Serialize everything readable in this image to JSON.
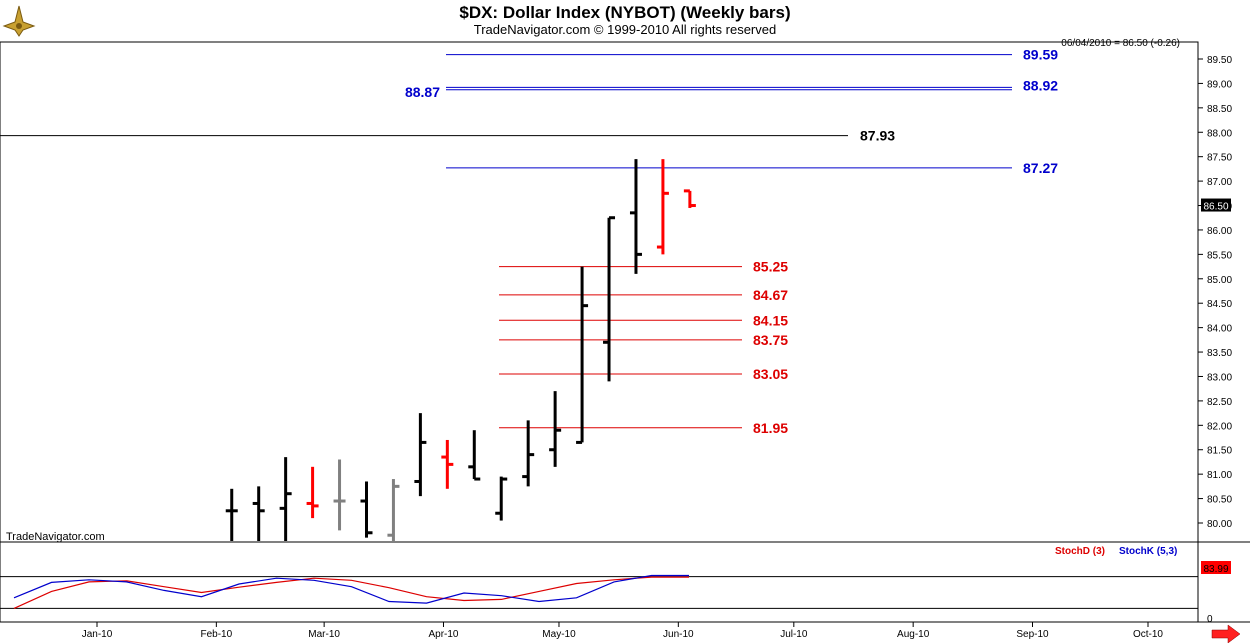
{
  "header": {
    "title": "$DX:  Dollar Index (NYBOT)  (Weekly bars)",
    "subtitle": "TradeNavigator.com © 1999-2010 All rights reserved",
    "quote_readout": "06/04/2010 = 86.50 (-0.26)",
    "watermark": "TradeNavigator.com"
  },
  "colors": {
    "up_bar": "#000000",
    "down_bar": "#ff0000",
    "neutral_bar": "#808080",
    "blue_level": "#0000cc",
    "red_level": "#dd0000",
    "stoch_d": "#dd0000",
    "stoch_k": "#0000cc"
  },
  "chart_data": [
    {
      "type": "ohlc",
      "title": "$DX:  Dollar Index (NYBOT)  (Weekly bars)",
      "x_tick_labels": [
        "Jan-10",
        "Feb-10",
        "Mar-10",
        "Apr-10",
        "May-10",
        "Jun-10",
        "Jul-10",
        "Aug-10",
        "Sep-10",
        "Oct-10"
      ],
      "y_tick_labels": [
        "80.00",
        "80.50",
        "81.00",
        "81.50",
        "82.00",
        "82.50",
        "83.00",
        "83.50",
        "84.00",
        "84.50",
        "85.00",
        "85.50",
        "86.00",
        "86.50",
        "87.00",
        "87.50",
        "88.00",
        "88.50",
        "89.00",
        "89.50"
      ],
      "ylim": [
        79.6,
        89.95
      ],
      "last_price": "86.50",
      "bars": [
        {
          "date": "2010-02-05",
          "open": 80.25,
          "high": 80.7,
          "low": 79.6,
          "close": 80.25,
          "color": "black"
        },
        {
          "date": "2010-02-12",
          "open": 80.4,
          "high": 80.75,
          "low": 79.6,
          "close": 80.25,
          "color": "black"
        },
        {
          "date": "2010-02-19",
          "open": 80.3,
          "high": 81.35,
          "low": 79.6,
          "close": 80.6,
          "color": "black"
        },
        {
          "date": "2010-02-26",
          "open": 80.4,
          "high": 81.15,
          "low": 80.1,
          "close": 80.35,
          "color": "red"
        },
        {
          "date": "2010-03-05",
          "open": 80.45,
          "high": 81.3,
          "low": 79.85,
          "close": 80.45,
          "color": "gray"
        },
        {
          "date": "2010-03-12",
          "open": 80.45,
          "high": 80.85,
          "low": 79.7,
          "close": 79.8,
          "color": "black"
        },
        {
          "date": "2010-03-19",
          "open": 79.75,
          "high": 80.9,
          "low": 79.6,
          "close": 80.75,
          "color": "gray"
        },
        {
          "date": "2010-03-26",
          "open": 80.85,
          "high": 82.25,
          "low": 80.55,
          "close": 81.65,
          "color": "black"
        },
        {
          "date": "2010-04-02",
          "open": 81.35,
          "high": 81.7,
          "low": 80.7,
          "close": 81.2,
          "color": "red"
        },
        {
          "date": "2010-04-09",
          "open": 81.15,
          "high": 81.9,
          "low": 80.9,
          "close": 80.9,
          "color": "black"
        },
        {
          "date": "2010-04-16",
          "open": 80.2,
          "high": 80.95,
          "low": 80.05,
          "close": 80.9,
          "color": "black"
        },
        {
          "date": "2010-04-23",
          "open": 80.95,
          "high": 82.1,
          "low": 80.75,
          "close": 81.4,
          "color": "black"
        },
        {
          "date": "2010-04-30",
          "open": 81.5,
          "high": 82.7,
          "low": 81.15,
          "close": 81.9,
          "color": "black"
        },
        {
          "date": "2010-05-07",
          "open": 81.65,
          "high": 85.25,
          "low": 81.65,
          "close": 84.45,
          "color": "black"
        },
        {
          "date": "2010-05-14",
          "open": 83.7,
          "high": 86.25,
          "low": 82.9,
          "close": 86.25,
          "color": "black"
        },
        {
          "date": "2010-05-21",
          "open": 86.35,
          "high": 87.45,
          "low": 85.1,
          "close": 85.5,
          "color": "black"
        },
        {
          "date": "2010-05-28",
          "open": 85.65,
          "high": 87.45,
          "low": 85.5,
          "close": 86.75,
          "color": "red"
        },
        {
          "date": "2010-06-04",
          "open": 86.8,
          "high": 86.8,
          "low": 86.45,
          "close": 86.5,
          "color": "red"
        }
      ],
      "levels": [
        {
          "value": "89.59",
          "color": "blue"
        },
        {
          "value": "88.92",
          "color": "blue"
        },
        {
          "value": "88.87",
          "color": "blue"
        },
        {
          "value": "87.93",
          "color": "black"
        },
        {
          "value": "87.27",
          "color": "blue"
        },
        {
          "value": "85.25",
          "color": "red"
        },
        {
          "value": "84.67",
          "color": "red"
        },
        {
          "value": "84.15",
          "color": "red"
        },
        {
          "value": "83.75",
          "color": "red"
        },
        {
          "value": "83.05",
          "color": "red"
        },
        {
          "value": "81.95",
          "color": "red"
        }
      ]
    },
    {
      "type": "line",
      "title": "",
      "ylim": [
        0,
        100
      ],
      "y_tick_labels": [
        "0"
      ],
      "last_value": "83.99",
      "series": [
        {
          "name": "StochD (3)",
          "color": "red",
          "values": [
            20,
            52,
            70,
            72,
            61,
            50,
            60,
            69,
            77,
            73,
            59,
            42,
            35,
            37,
            52,
            67,
            74,
            79,
            79
          ]
        },
        {
          "name": "StochK (5,3)",
          "color": "blue",
          "values": [
            40,
            69,
            74,
            70,
            54,
            42,
            66,
            77,
            73,
            61,
            33,
            30,
            49,
            44,
            33,
            40,
            70,
            82,
            82
          ]
        }
      ]
    }
  ]
}
